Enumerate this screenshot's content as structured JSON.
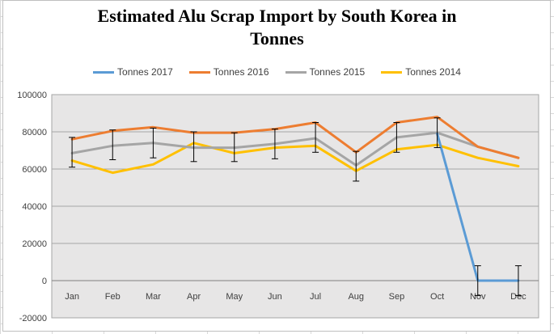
{
  "chart_data": {
    "type": "line",
    "title_lines": [
      "Estimated Alu Scrap Import by South Korea  in",
      "Tonnes"
    ],
    "categories": [
      "Jan",
      "Feb",
      "Mar",
      "Apr",
      "May",
      "Jun",
      "Jul",
      "Aug",
      "Sep",
      "Oct",
      "Nov",
      "Dec"
    ],
    "ylim": [
      -20000,
      100000
    ],
    "yticks": [
      -20000,
      0,
      20000,
      40000,
      60000,
      80000,
      100000
    ],
    "ytick_labels": [
      "-20000",
      "0",
      "20000",
      "40000",
      "60000",
      "80000",
      "100000"
    ],
    "grid": true,
    "legend_position": "top",
    "series": [
      {
        "name": "Tonnes 2017",
        "color": "#5b9bd5",
        "values": [
          null,
          null,
          null,
          null,
          null,
          null,
          null,
          null,
          null,
          79000,
          0,
          0
        ]
      },
      {
        "name": "Tonnes 2016",
        "color": "#ed7d31",
        "values": [
          76000,
          80500,
          82500,
          79500,
          79500,
          81500,
          85000,
          69000,
          85000,
          88000,
          72000,
          66000
        ]
      },
      {
        "name": "Tonnes 2015",
        "color": "#a5a5a5",
        "values": [
          68500,
          72500,
          74000,
          71500,
          71500,
          73500,
          76500,
          62000,
          77000,
          79500,
          72000,
          66000
        ]
      },
      {
        "name": "Tonnes 2014",
        "color": "#ffc000",
        "values": [
          64500,
          58000,
          62500,
          74000,
          68500,
          71500,
          72500,
          59000,
          70500,
          73000,
          66000,
          61500
        ]
      }
    ],
    "error_bars": {
      "series": "Tonnes 2017",
      "ranges": [
        [
          61000,
          77000
        ],
        [
          65000,
          81000
        ],
        [
          66000,
          82000
        ],
        [
          64000,
          80000
        ],
        [
          64000,
          79500
        ],
        [
          65500,
          81500
        ],
        [
          69000,
          85000
        ],
        [
          53500,
          69500
        ],
        [
          69000,
          85000
        ],
        [
          71500,
          87500
        ],
        [
          -8000,
          8000
        ],
        [
          -8000,
          8000
        ]
      ]
    }
  }
}
